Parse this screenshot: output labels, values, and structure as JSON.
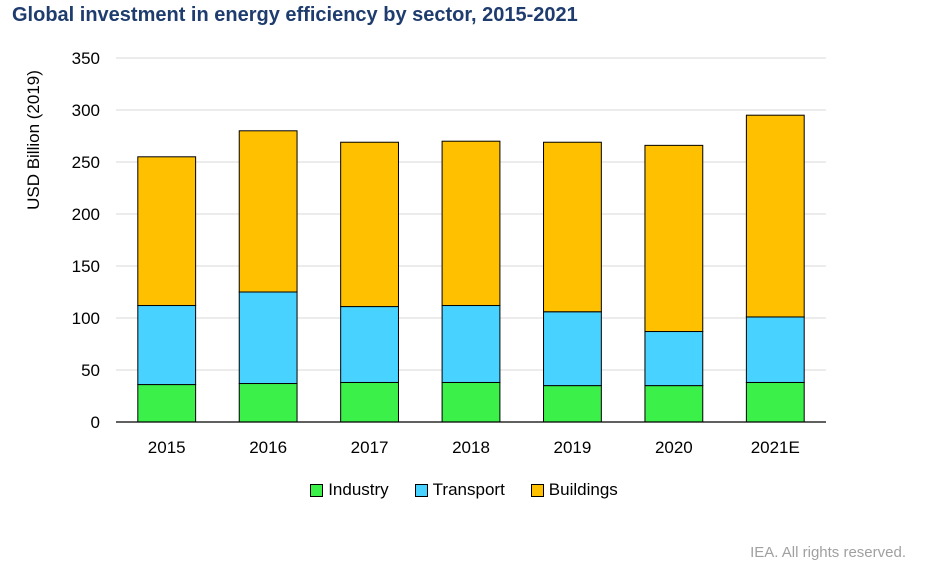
{
  "header": {
    "title": "Global investment in energy efficiency by sector, 2015-2021"
  },
  "footer": {
    "credit": "IEA. All rights reserved."
  },
  "colors": {
    "industry": "#3cf04a",
    "transport": "#47d2ff",
    "buildings": "#ffc000",
    "grid": "#d9d9d9"
  },
  "chart_data": {
    "type": "bar",
    "stacked": true,
    "title": "Global investment in energy efficiency by sector, 2015-2021",
    "xlabel": "",
    "ylabel": "USD Billion (2019)",
    "ylim": [
      0,
      350
    ],
    "yticks": [
      0,
      50,
      100,
      150,
      200,
      250,
      300,
      350
    ],
    "grid": true,
    "legend_position": "bottom",
    "categories": [
      "2015",
      "2016",
      "2017",
      "2018",
      "2019",
      "2020",
      "2021E"
    ],
    "series": [
      {
        "name": "Industry",
        "values": [
          36,
          37,
          38,
          38,
          35,
          35,
          38
        ]
      },
      {
        "name": "Transport",
        "values": [
          76,
          88,
          73,
          74,
          71,
          52,
          63
        ]
      },
      {
        "name": "Buildings",
        "values": [
          143,
          155,
          158,
          158,
          163,
          179,
          194
        ]
      }
    ]
  }
}
